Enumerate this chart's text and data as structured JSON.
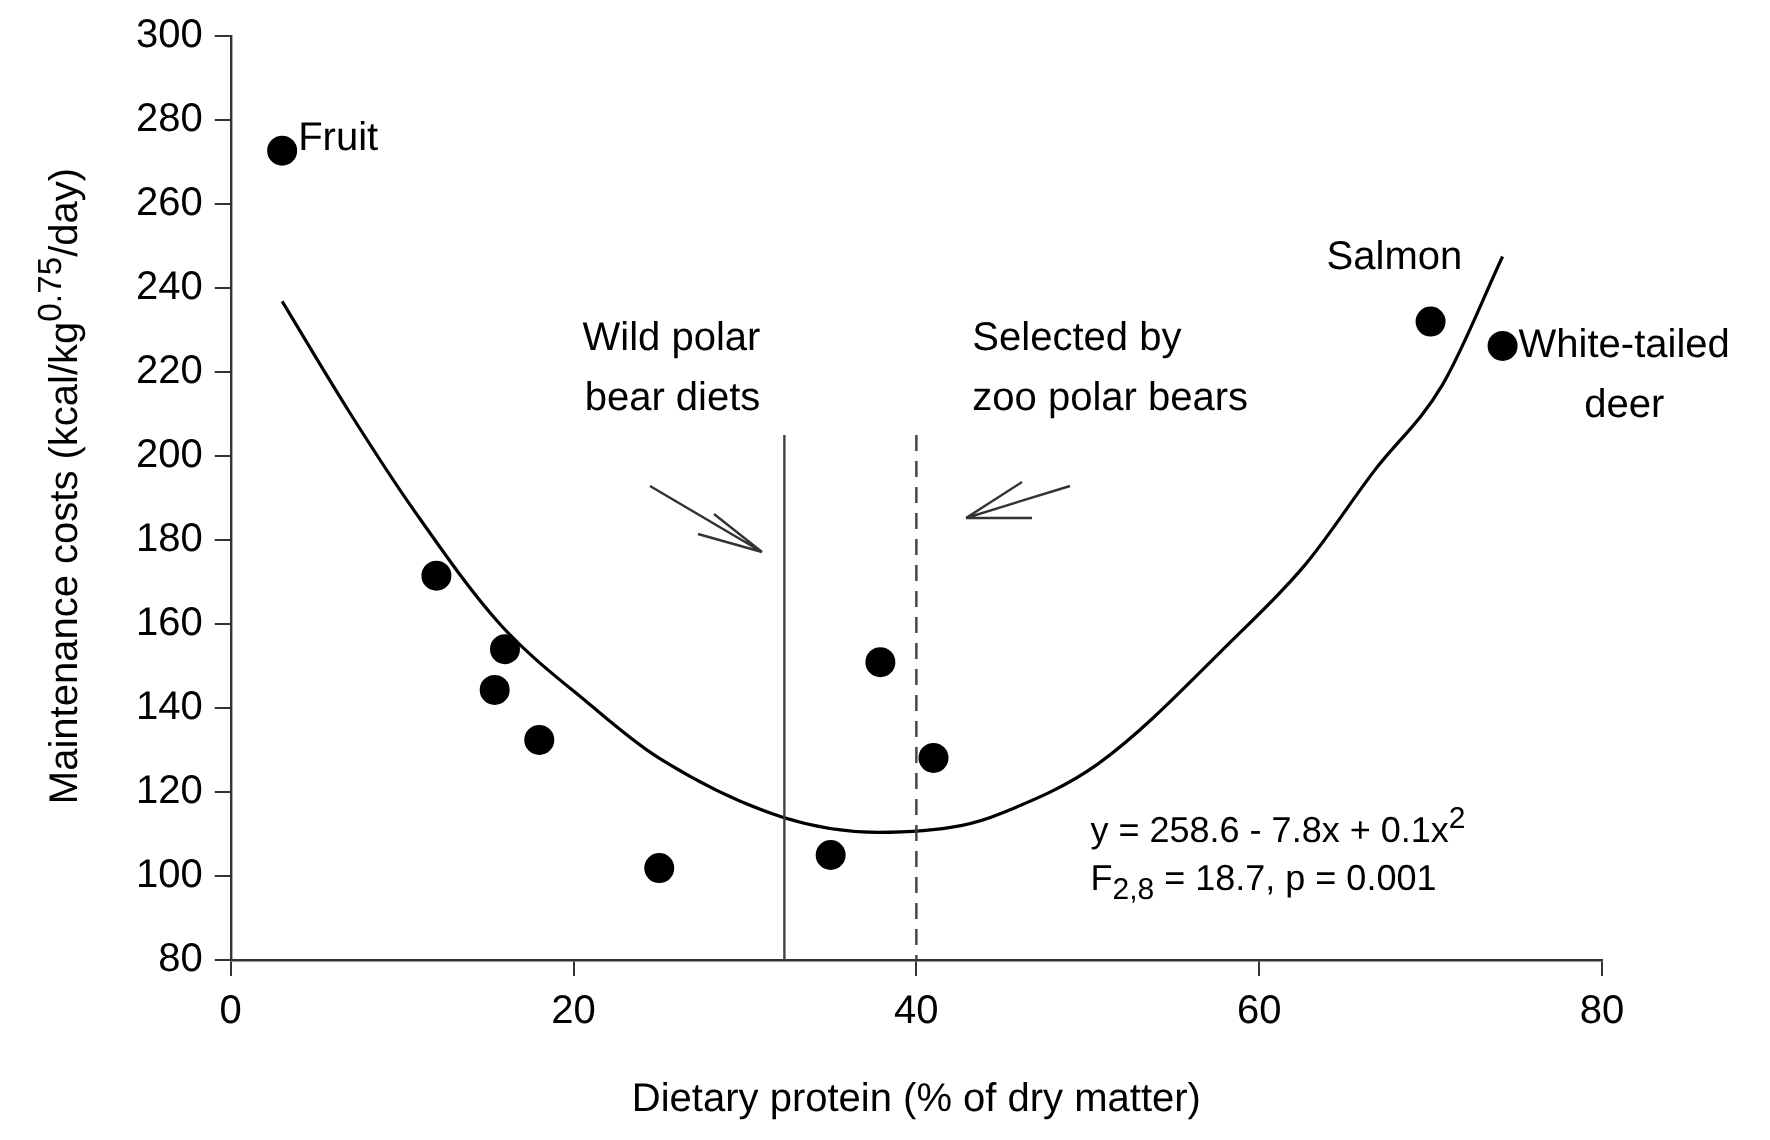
{
  "chart_data": {
    "type": "scatter",
    "xlabel": "Dietary protein (% of dry matter)",
    "ylabel": "Maintenance costs (kcal/kg$^{0.75}$/day)",
    "xlim": [
      0,
      80
    ],
    "xticks": [
      0,
      20,
      40,
      60,
      80
    ],
    "ylim": [
      80,
      300
    ],
    "yticks": [
      80,
      100,
      120,
      140,
      160,
      180,
      200,
      220,
      240,
      260,
      280,
      300
    ],
    "grid": false,
    "legend": false,
    "marker": "circle",
    "series": [
      {
        "color": "#000000",
        "x": [
          3,
          12,
          15.4,
          16,
          18,
          25,
          35,
          37.9,
          41,
          70,
          74.2
        ],
        "values": [
          272.7,
          171.5,
          144.3,
          154,
          132.4,
          101.9,
          105,
          150.9,
          128.1,
          232,
          226.2
        ]
      },
      {
        "type": "line",
        "color": "#000000",
        "marker": "none",
        "line_style": "solid",
        "x": [
          3,
          6.9,
          10.7,
          15.7,
          20.9,
          24.9,
          32.2,
          37.8,
          42.6,
          45,
          50.6,
          58.6,
          62.7,
          66.7,
          70.7,
          74.2
        ],
        "values": [
          236.8,
          210.6,
          187,
          160,
          141,
          128.3,
          114,
          110.4,
          112,
          115,
          126.7,
          156.8,
          174.2,
          196.4,
          217,
          247.5
        ]
      }
    ],
    "ref_lines": [
      {
        "axis": "x",
        "value": 32.3,
        "label": "Wild polar\nbear diets",
        "color": "#404040",
        "line_style": "solid"
      },
      {
        "axis": "x",
        "value": 40,
        "label": "Selected by\nzoo polar bears",
        "color": "#404040",
        "line_style": "dashed"
      }
    ],
    "annotations": [
      {
        "text": "Fruit",
        "x": 3,
        "y": 272.7
      },
      {
        "text": "Salmon",
        "x": 70,
        "y": 232
      },
      {
        "text": "White-tailed\ndeer",
        "x": 74.2,
        "y": 226.2
      },
      "y = 258.6 - 7.8x + 0.1x$^{2}$",
      "F$_{2,8}$ = 18.7, p = 0.001"
    ]
  }
}
